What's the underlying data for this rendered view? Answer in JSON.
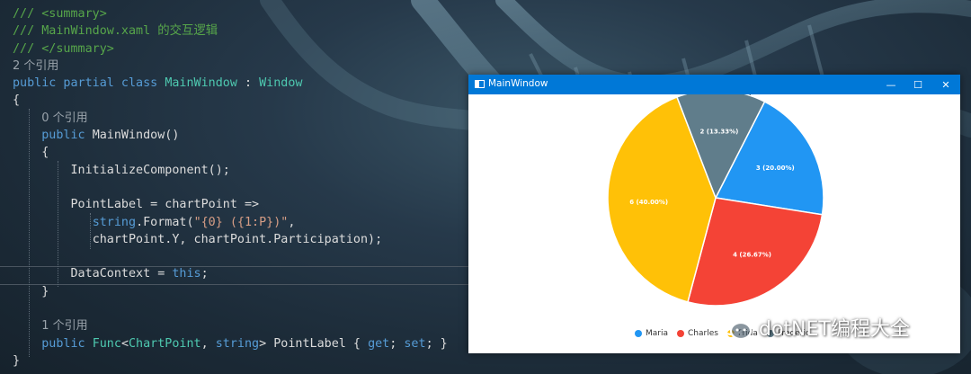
{
  "code_lines": [
    {
      "kind": "comment",
      "text": "/// <summary>"
    },
    {
      "kind": "comment",
      "text": "/// MainWindow.xaml 的交互逻辑"
    },
    {
      "kind": "comment",
      "text": "/// </summary>"
    },
    {
      "kind": "ref",
      "text": "2 个引用"
    },
    {
      "kind": "class",
      "kw": "public partial class ",
      "name": "MainWindow",
      "sep": " : ",
      "base": "Window"
    },
    {
      "kind": "plain",
      "text": "{"
    },
    {
      "kind": "ref",
      "indent": "    ",
      "text": "0 个引用"
    },
    {
      "kind": "ctor",
      "indent": "    ",
      "kw": "public ",
      "text": "MainWindow()"
    },
    {
      "kind": "plain",
      "indent": "    ",
      "text": "{"
    },
    {
      "kind": "plain",
      "indent": "        ",
      "text": "InitializeComponent();"
    },
    {
      "kind": "plain",
      "text": ""
    },
    {
      "kind": "plain",
      "indent": "        ",
      "text": "PointLabel = chartPoint =>"
    },
    {
      "kind": "format",
      "indent": "           ",
      "kw": "string",
      "mid": ".Format(",
      "str": "\"{0} ({1:P})\"",
      "end": ","
    },
    {
      "kind": "plain",
      "indent": "           ",
      "text": "chartPoint.Y, chartPoint.Participation);"
    },
    {
      "kind": "plain",
      "text": ""
    },
    {
      "kind": "this",
      "indent": "        ",
      "pre": "DataContext = ",
      "kw": "this",
      "end": ";"
    },
    {
      "kind": "plain",
      "indent": "    ",
      "text": "}"
    },
    {
      "kind": "plain",
      "text": ""
    },
    {
      "kind": "ref",
      "indent": "    ",
      "text": "1 个引用"
    },
    {
      "kind": "prop",
      "indent": "    ",
      "kw": "public ",
      "t1": "Func",
      "lt": "<",
      "t2": "ChartPoint",
      "comma": ", ",
      "kw2": "string",
      "gt": "> PointLabel { ",
      "get": "get",
      "semi1": "; ",
      "set": "set",
      "semi2": "; }"
    },
    {
      "kind": "plain",
      "text": "}"
    }
  ],
  "window": {
    "title": "MainWindow",
    "minimize": "—",
    "maximize": "☐",
    "close": "✕"
  },
  "chart_data": {
    "type": "pie",
    "series": [
      {
        "name": "Maria",
        "value": 3,
        "label": "3 (20.00%)",
        "color": "#2196f3"
      },
      {
        "name": "Charles",
        "value": 4,
        "label": "4 (26.67%)",
        "color": "#f44336"
      },
      {
        "name": "Frida",
        "value": 6,
        "label": "6 (40.00%)",
        "color": "#ffc107"
      },
      {
        "name": "Frederic",
        "value": 2,
        "label": "2 (13.33%)",
        "color": "#607d8b"
      }
    ],
    "legend_position": "bottom"
  },
  "watermark": {
    "text": "dotNET编程大全",
    "icon": "wechat-icon"
  }
}
